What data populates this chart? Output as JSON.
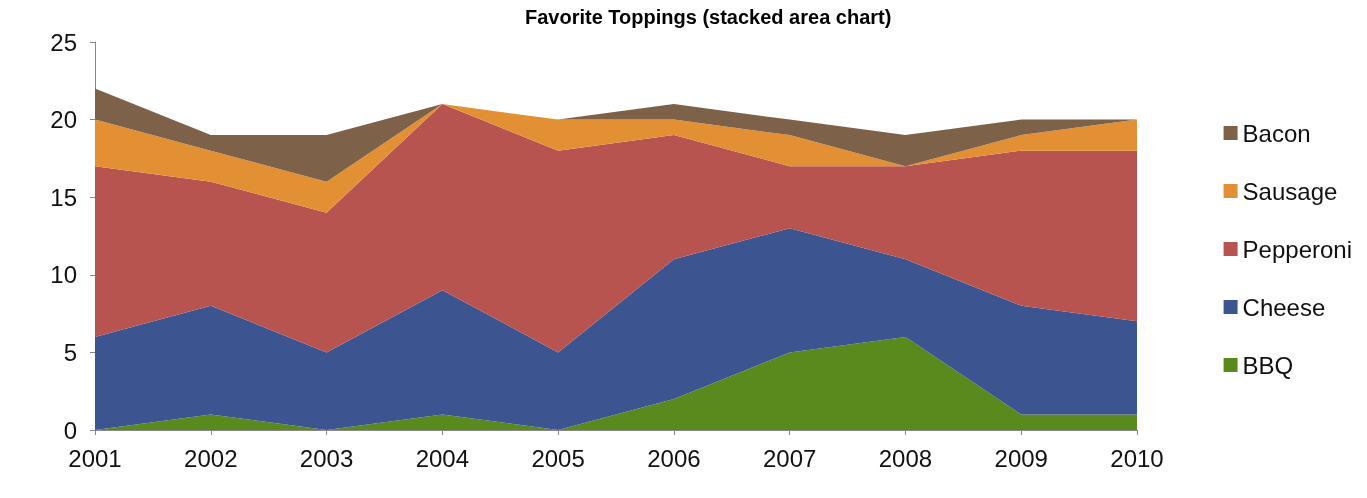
{
  "chart_data": {
    "type": "area",
    "title": "Favorite Toppings (stacked area chart)",
    "stacked": true,
    "categories": [
      "2001",
      "2002",
      "2003",
      "2004",
      "2005",
      "2006",
      "2007",
      "2008",
      "2009",
      "2010"
    ],
    "series": [
      {
        "name": "BBQ",
        "color": "#5a8a1e",
        "values": [
          0,
          1,
          0,
          1,
          0,
          2,
          5,
          6,
          1,
          1
        ]
      },
      {
        "name": "Cheese",
        "color": "#3c5490",
        "values": [
          6,
          7,
          5,
          8,
          5,
          9,
          8,
          5,
          7,
          6
        ]
      },
      {
        "name": "Pepperoni",
        "color": "#b85450",
        "values": [
          11,
          8,
          9,
          12,
          13,
          8,
          4,
          6,
          10,
          11
        ]
      },
      {
        "name": "Sausage",
        "color": "#e39035",
        "values": [
          3,
          2,
          2,
          0,
          2,
          1,
          2,
          0,
          1,
          2
        ]
      },
      {
        "name": "Bacon",
        "color": "#7d6148",
        "values": [
          2,
          1,
          3,
          0,
          0,
          1,
          1,
          2,
          1,
          0
        ]
      }
    ],
    "ylim": [
      0,
      25
    ],
    "yticks": [
      0,
      5,
      10,
      15,
      20,
      25
    ],
    "grid": false,
    "legend": "right"
  }
}
